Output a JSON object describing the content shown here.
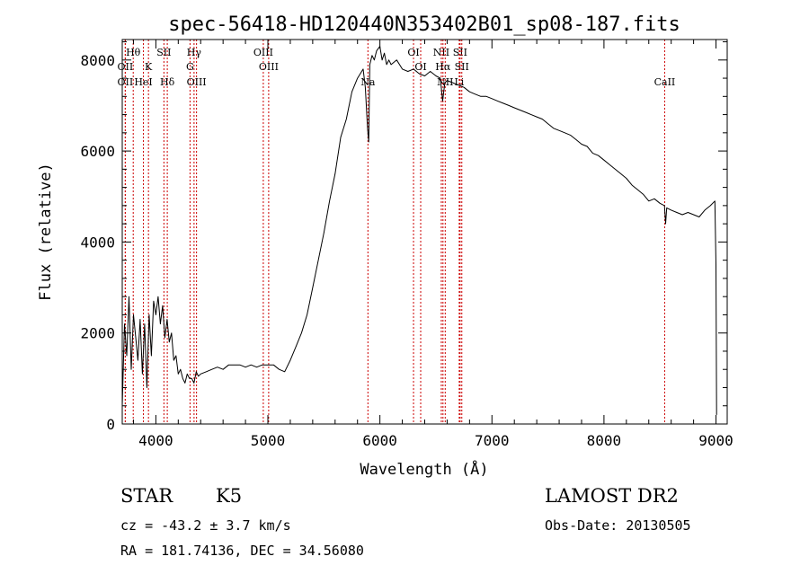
{
  "chart_data": {
    "type": "line",
    "title": "spec-56418-HD120440N353402B01_sp08-187.fits",
    "xlabel": "Wavelength (Å)",
    "ylabel": "Flux (relative)",
    "xlim": [
      3700,
      9100
    ],
    "ylim": [
      0,
      8450
    ],
    "xticks": [
      4000,
      5000,
      6000,
      7000,
      8000,
      9000
    ],
    "yticks": [
      0,
      2000,
      4000,
      6000,
      8000
    ],
    "grid": false,
    "series": [
      {
        "x": [
          3700,
          3720,
          3740,
          3760,
          3780,
          3800,
          3820,
          3840,
          3860,
          3880,
          3900,
          3920,
          3940,
          3960,
          3980,
          4000,
          4020,
          4040,
          4060,
          4080,
          4100,
          4120,
          4140,
          4160,
          4180,
          4200,
          4220,
          4240,
          4260,
          4280,
          4300,
          4320,
          4340,
          4360,
          4380,
          4400,
          4450,
          4500,
          4550,
          4600,
          4650,
          4700,
          4750,
          4800,
          4850,
          4900,
          4950,
          5000,
          5050,
          5100,
          5150,
          5200,
          5250,
          5300,
          5350,
          5400,
          5450,
          5500,
          5550,
          5600,
          5650,
          5700,
          5750,
          5800,
          5850,
          5870,
          5890,
          5900,
          5910,
          5930,
          5950,
          5970,
          6000,
          6020,
          6040,
          6060,
          6080,
          6100,
          6150,
          6200,
          6250,
          6300,
          6350,
          6400,
          6450,
          6500,
          6540,
          6560,
          6580,
          6600,
          6650,
          6700,
          6750,
          6800,
          6850,
          6900,
          6950,
          7000,
          7050,
          7100,
          7150,
          7200,
          7250,
          7300,
          7350,
          7400,
          7450,
          7500,
          7550,
          7600,
          7650,
          7700,
          7750,
          7800,
          7850,
          7900,
          7950,
          8000,
          8050,
          8100,
          8150,
          8200,
          8250,
          8300,
          8350,
          8400,
          8450,
          8500,
          8540,
          8550,
          8560,
          8600,
          8650,
          8700,
          8750,
          8800,
          8850,
          8900,
          8950,
          8990,
          9000,
          9005
        ],
        "y": [
          400,
          2200,
          1500,
          2800,
          1200,
          2400,
          1900,
          1400,
          2300,
          1100,
          2200,
          800,
          2400,
          1500,
          2700,
          2400,
          2800,
          2200,
          2600,
          1900,
          2300,
          1800,
          2000,
          1400,
          1500,
          1100,
          1200,
          1000,
          900,
          1100,
          1000,
          1000,
          900,
          1150,
          1050,
          1100,
          1150,
          1200,
          1250,
          1200,
          1300,
          1300,
          1300,
          1250,
          1300,
          1250,
          1300,
          1300,
          1300,
          1200,
          1150,
          1400,
          1700,
          2000,
          2400,
          3000,
          3600,
          4200,
          4900,
          5500,
          6300,
          6700,
          7300,
          7600,
          7800,
          7400,
          6500,
          6200,
          7900,
          8100,
          8000,
          8200,
          8300,
          8000,
          8150,
          7900,
          8000,
          7900,
          8000,
          7800,
          7750,
          7800,
          7700,
          7650,
          7750,
          7650,
          7600,
          7100,
          7500,
          7550,
          7500,
          7450,
          7400,
          7300,
          7250,
          7200,
          7200,
          7150,
          7100,
          7050,
          7000,
          6950,
          6900,
          6850,
          6800,
          6750,
          6700,
          6600,
          6500,
          6450,
          6400,
          6350,
          6250,
          6150,
          6100,
          5950,
          5900,
          5800,
          5700,
          5600,
          5500,
          5400,
          5250,
          5150,
          5050,
          4900,
          4950,
          4850,
          4800,
          4400,
          4750,
          4700,
          4650,
          4600,
          4650,
          4600,
          4550,
          4700,
          4800,
          4900,
          3500,
          200
        ]
      }
    ],
    "line_markers": [
      {
        "label": "Hθ",
        "x": 3798,
        "row": 1
      },
      {
        "label": "OII",
        "x": 3727,
        "row": 2
      },
      {
        "label": "OII",
        "x": 3727,
        "row": 3
      },
      {
        "label": "HeI",
        "x": 3889,
        "row": 3
      },
      {
        "label": "K",
        "x": 3934,
        "row": 2
      },
      {
        "label": "SII",
        "x": 4072,
        "row": 1
      },
      {
        "label": "Hδ",
        "x": 4102,
        "row": 3
      },
      {
        "label": "Hγ",
        "x": 4341,
        "row": 1
      },
      {
        "label": "G",
        "x": 4305,
        "row": 2
      },
      {
        "label": "OIII",
        "x": 4363,
        "row": 3
      },
      {
        "label": "OIII",
        "x": 4959,
        "row": 1
      },
      {
        "label": "OIII",
        "x": 5007,
        "row": 2
      },
      {
        "label": "Na",
        "x": 5893,
        "row": 3
      },
      {
        "label": "OI",
        "x": 6300,
        "row": 1
      },
      {
        "label": "OI",
        "x": 6364,
        "row": 2
      },
      {
        "label": "NII",
        "x": 6548,
        "row": 1
      },
      {
        "label": "NII",
        "x": 6583,
        "row": 3
      },
      {
        "label": "Hα",
        "x": 6563,
        "row": 2
      },
      {
        "label": "SII",
        "x": 6716,
        "row": 1
      },
      {
        "label": "SII",
        "x": 6731,
        "row": 2
      },
      {
        "label": "Li",
        "x": 6708,
        "row": 3
      },
      {
        "label": "CaII",
        "x": 8542,
        "row": 3
      }
    ],
    "colors": {
      "spectrum": "#000000",
      "markers": "#cc0000",
      "axes": "#000000"
    }
  },
  "info": {
    "object_class": "STAR",
    "subclass": "K5",
    "survey": "LAMOST DR2",
    "redshift": "cz = -43.2 ± 3.7 km/s",
    "obs_date": "Obs-Date: 20130505",
    "coords": "RA = 181.74136, DEC =  34.56080"
  }
}
